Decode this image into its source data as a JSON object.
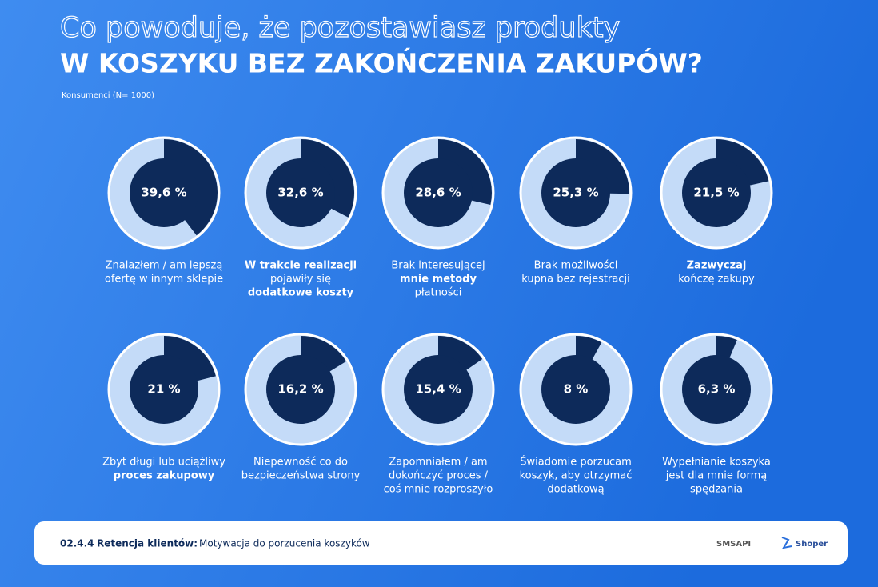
{
  "header": {
    "title_line1": "Co powoduje, że pozostawiasz produkty",
    "title_line2": "W KOSZYKU BEZ ZAKOŃCZENIA ZAKUPÓW?",
    "subtitle": "Konsumenci (N= 1000)"
  },
  "chart_data": [
    {
      "type": "pie",
      "values": [
        39.6
      ],
      "value_labels": [
        "39,6 %"
      ],
      "ylim": [
        0,
        100
      ],
      "colors": [
        "#0d2a5a",
        "#c4dbf8"
      ],
      "label": [
        {
          "text": "Znalazłem / am lepszą",
          "bold": false
        },
        {
          "text": "ofertę w innym sklepie",
          "bold": false
        }
      ]
    },
    {
      "type": "pie",
      "values": [
        32.6
      ],
      "value_labels": [
        "32,6 %"
      ],
      "ylim": [
        0,
        100
      ],
      "colors": [
        "#0d2a5a",
        "#c4dbf8"
      ],
      "label": [
        {
          "text": "W trakcie realizacji",
          "bold": true
        },
        {
          "text": "pojawiły się",
          "bold": false
        },
        {
          "text": "dodatkowe koszty",
          "bold": true
        }
      ]
    },
    {
      "type": "pie",
      "values": [
        28.6
      ],
      "value_labels": [
        "28,6 %"
      ],
      "ylim": [
        0,
        100
      ],
      "colors": [
        "#0d2a5a",
        "#c4dbf8"
      ],
      "label": [
        {
          "text": "Brak interesującej",
          "bold": false
        },
        {
          "text": "mnie metody",
          "bold": true
        },
        {
          "text": "płatności",
          "bold": false
        }
      ]
    },
    {
      "type": "pie",
      "values": [
        25.3
      ],
      "value_labels": [
        "25,3 %"
      ],
      "ylim": [
        0,
        100
      ],
      "colors": [
        "#0d2a5a",
        "#c4dbf8"
      ],
      "label": [
        {
          "text": "Brak możliwości",
          "bold": false
        },
        {
          "text": "kupna bez rejestracji",
          "bold": false
        }
      ]
    },
    {
      "type": "pie",
      "values": [
        21.5
      ],
      "value_labels": [
        "21,5 %"
      ],
      "ylim": [
        0,
        100
      ],
      "colors": [
        "#0d2a5a",
        "#c4dbf8"
      ],
      "label": [
        {
          "text": "Zazwyczaj",
          "bold": true
        },
        {
          "text": "kończę zakupy",
          "bold": false
        }
      ]
    },
    {
      "type": "pie",
      "values": [
        21
      ],
      "value_labels": [
        "21 %"
      ],
      "ylim": [
        0,
        100
      ],
      "colors": [
        "#0d2a5a",
        "#c4dbf8"
      ],
      "label": [
        {
          "text": "Zbyt długi lub uciążliwy",
          "bold": false
        },
        {
          "text": "proces zakupowy",
          "bold": true
        }
      ]
    },
    {
      "type": "pie",
      "values": [
        16.2
      ],
      "value_labels": [
        "16,2 %"
      ],
      "ylim": [
        0,
        100
      ],
      "colors": [
        "#0d2a5a",
        "#c4dbf8"
      ],
      "label": [
        {
          "text": "Niepewność co do",
          "bold": false
        },
        {
          "text": "bezpieczeństwa strony",
          "bold": false
        }
      ]
    },
    {
      "type": "pie",
      "values": [
        15.4
      ],
      "value_labels": [
        "15,4 %"
      ],
      "ylim": [
        0,
        100
      ],
      "colors": [
        "#0d2a5a",
        "#c4dbf8"
      ],
      "label": [
        {
          "text": "Zapomniałem / am",
          "bold": false
        },
        {
          "text": "dokończyć proces /",
          "bold": false
        },
        {
          "text": "coś mnie rozproszyło",
          "bold": false
        }
      ]
    },
    {
      "type": "pie",
      "values": [
        8
      ],
      "value_labels": [
        "8 %"
      ],
      "ylim": [
        0,
        100
      ],
      "colors": [
        "#0d2a5a",
        "#c4dbf8"
      ],
      "label": [
        {
          "text": "Świadomie porzucam",
          "bold": false
        },
        {
          "text": "koszyk, aby otrzymać",
          "bold": false
        },
        {
          "text": "dodatkową",
          "bold": false
        }
      ]
    },
    {
      "type": "pie",
      "values": [
        6.3
      ],
      "value_labels": [
        "6,3 %"
      ],
      "ylim": [
        0,
        100
      ],
      "colors": [
        "#0d2a5a",
        "#c4dbf8"
      ],
      "label": [
        {
          "text": "Wypełnianie koszyka",
          "bold": false
        },
        {
          "text": "jest dla mnie formą",
          "bold": false
        },
        {
          "text": "spędzania",
          "bold": false
        }
      ]
    }
  ],
  "footer": {
    "code": "02.4.4",
    "section": "Retencja klientów:",
    "topic": "Motywacja do porzucenia koszyków",
    "logo1": "SMSAPI",
    "logo2": "Shoper"
  }
}
